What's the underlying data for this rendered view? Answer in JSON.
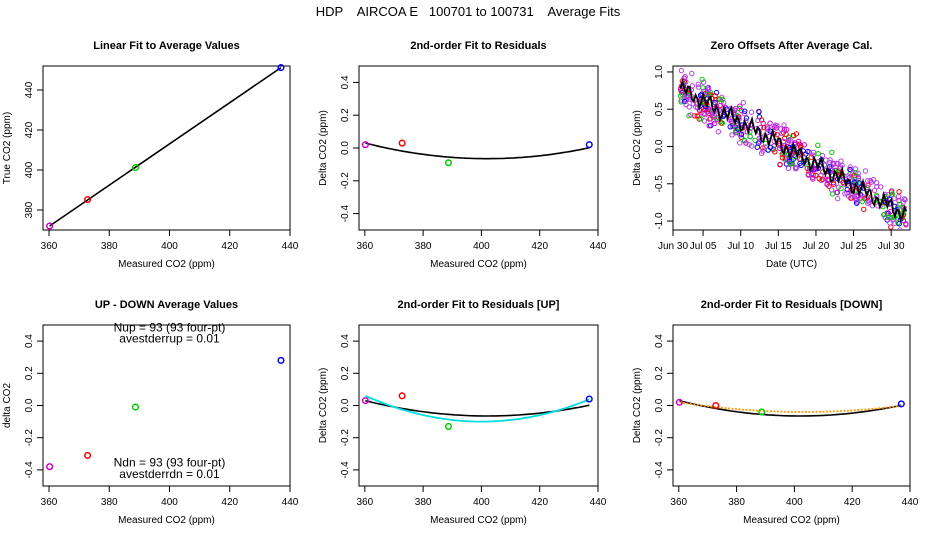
{
  "figure": {
    "title": "HDP    AIRCOA E   100701 to 100731    Average Fits"
  },
  "colors": {
    "purple": "#cc00cc",
    "red": "#ee0000",
    "green": "#00cc00",
    "blue": "#0000ee",
    "black": "#000000",
    "cyan": "#00dddd",
    "orange": "#ff9900",
    "mix_magenta": "#b040e0"
  },
  "chart_data": [
    {
      "id": "p1",
      "type": "scatter",
      "title": "Linear Fit to Average Values",
      "xlabel": "Measured CO2 (ppm)",
      "ylabel": "True CO2 (ppm)",
      "xlim": [
        358,
        440
      ],
      "ylim": [
        370,
        452
      ],
      "xticks": [
        360,
        380,
        400,
        420,
        440
      ],
      "yticks": [
        380,
        400,
        420,
        440
      ],
      "points": [
        {
          "x": 360.2,
          "y": 372.0,
          "color": "purple"
        },
        {
          "x": 372.8,
          "y": 385.2,
          "color": "red"
        },
        {
          "x": 388.7,
          "y": 401.2,
          "color": "green"
        },
        {
          "x": 437.0,
          "y": 451.2,
          "color": "blue"
        }
      ],
      "lines": [
        {
          "kind": "linear",
          "x": [
            360.2,
            437.0
          ],
          "y": [
            372.0,
            451.2
          ],
          "color": "black"
        }
      ]
    },
    {
      "id": "p2",
      "type": "scatter",
      "title": "2nd-order Fit to Residuals",
      "xlabel": "Measured CO2 (ppm)",
      "ylabel": "Delta CO2 (ppm)",
      "xlim": [
        358,
        440
      ],
      "ylim": [
        -0.5,
        0.5
      ],
      "xticks": [
        360,
        380,
        400,
        420,
        440
      ],
      "yticks": [
        -0.4,
        -0.2,
        0.0,
        0.2,
        0.4
      ],
      "points": [
        {
          "x": 360.2,
          "y": 0.02,
          "color": "purple"
        },
        {
          "x": 372.8,
          "y": 0.03,
          "color": "red"
        },
        {
          "x": 388.7,
          "y": -0.09,
          "color": "green"
        },
        {
          "x": 437.0,
          "y": 0.02,
          "color": "blue"
        }
      ],
      "lines": [
        {
          "kind": "parabola",
          "x": [
            360.2,
            437.0
          ],
          "xv": 402.0,
          "yv": -0.065,
          "y_end": 0.03,
          "color": "black"
        }
      ]
    },
    {
      "id": "p3",
      "type": "scatter",
      "title": "Zero Offsets After Average Cal.",
      "xlabel": "Date (UTC)",
      "ylabel": "Delta CO2 (ppm)",
      "xlim": [
        0,
        31.5
      ],
      "ylim": [
        -1.12,
        1.08
      ],
      "xticks": [
        0,
        4,
        9,
        14,
        19,
        24,
        29
      ],
      "xticklabels": [
        "Jun 30",
        "Jul 05",
        "Jul 10",
        "Jul 15",
        "Jul 20",
        "Jul 25",
        "Jul 30"
      ],
      "yticks": [
        -1.0,
        -0.5,
        0.0,
        0.5,
        1.0
      ],
      "scatter_trend": {
        "start_x": 1.0,
        "end_x": 31.0,
        "start_y": 0.78,
        "end_y": -0.92,
        "noise": 0.33
      },
      "scatter_colors": [
        "mix_magenta",
        "purple",
        "red",
        "blue",
        "green"
      ],
      "mean_line_color": "black"
    },
    {
      "id": "p4",
      "type": "scatter",
      "title": "UP - DOWN Average Values",
      "xlabel": "Measured CO2 (ppm)",
      "ylabel": "delta CO2",
      "xlim": [
        358,
        440
      ],
      "ylim": [
        -0.5,
        0.5
      ],
      "xticks": [
        360,
        380,
        400,
        420,
        440
      ],
      "yticks": [
        -0.4,
        -0.2,
        0.0,
        0.2,
        0.4
      ],
      "points": [
        {
          "x": 360.2,
          "y": -0.38,
          "color": "purple"
        },
        {
          "x": 372.8,
          "y": -0.31,
          "color": "red"
        },
        {
          "x": 388.7,
          "y": -0.01,
          "color": "green"
        },
        {
          "x": 437.0,
          "y": 0.28,
          "color": "blue"
        }
      ],
      "annotations": [
        {
          "text": "Nup = 93 (93 four-pt)",
          "x": 400,
          "y": 0.46
        },
        {
          "text": "avestderrup =  0.01",
          "x": 400,
          "y": 0.39
        },
        {
          "text": "Ndn = 93 (93 four-pt)",
          "x": 400,
          "y": -0.38
        },
        {
          "text": "avestderrdn =  0.01",
          "x": 400,
          "y": -0.45
        }
      ]
    },
    {
      "id": "p5",
      "type": "scatter",
      "title": "2nd-order Fit to Residuals [UP]",
      "xlabel": "Measured CO2 (ppm)",
      "ylabel": "Delta CO2 (ppm)",
      "xlim": [
        358,
        440
      ],
      "ylim": [
        -0.5,
        0.5
      ],
      "xticks": [
        360,
        380,
        400,
        420,
        440
      ],
      "yticks": [
        -0.4,
        -0.2,
        0.0,
        0.2,
        0.4
      ],
      "points": [
        {
          "x": 360.2,
          "y": 0.03,
          "color": "purple"
        },
        {
          "x": 372.8,
          "y": 0.06,
          "color": "red"
        },
        {
          "x": 388.7,
          "y": -0.13,
          "color": "green"
        },
        {
          "x": 437.0,
          "y": 0.04,
          "color": "blue"
        }
      ],
      "lines": [
        {
          "kind": "parabola",
          "x": [
            360.2,
            437.0
          ],
          "xv": 402.0,
          "yv": -0.065,
          "y_end": 0.03,
          "color": "black"
        },
        {
          "kind": "parabola",
          "x": [
            360.2,
            437.0
          ],
          "xv": 400.0,
          "yv": -0.1,
          "y_end": 0.06,
          "color": "cyan"
        }
      ]
    },
    {
      "id": "p6",
      "type": "scatter",
      "title": "2nd-order Fit to Residuals [DOWN]",
      "xlabel": "Measured CO2 (ppm)",
      "ylabel": "Delta CO2 (ppm)",
      "xlim": [
        358,
        440
      ],
      "ylim": [
        -0.5,
        0.5
      ],
      "xticks": [
        360,
        380,
        400,
        420,
        440
      ],
      "yticks": [
        -0.4,
        -0.2,
        0.0,
        0.2,
        0.4
      ],
      "points": [
        {
          "x": 360.2,
          "y": 0.02,
          "color": "purple"
        },
        {
          "x": 372.8,
          "y": 0.0,
          "color": "red"
        },
        {
          "x": 388.7,
          "y": -0.04,
          "color": "green"
        },
        {
          "x": 437.0,
          "y": 0.01,
          "color": "blue"
        }
      ],
      "lines": [
        {
          "kind": "parabola",
          "x": [
            360.2,
            437.0
          ],
          "xv": 402.0,
          "yv": -0.065,
          "y_end": 0.03,
          "color": "black"
        },
        {
          "kind": "parabola",
          "x": [
            360.2,
            437.0
          ],
          "xv": 403.0,
          "yv": -0.04,
          "y_end": 0.02,
          "color": "orange",
          "dashed": true
        }
      ]
    }
  ]
}
